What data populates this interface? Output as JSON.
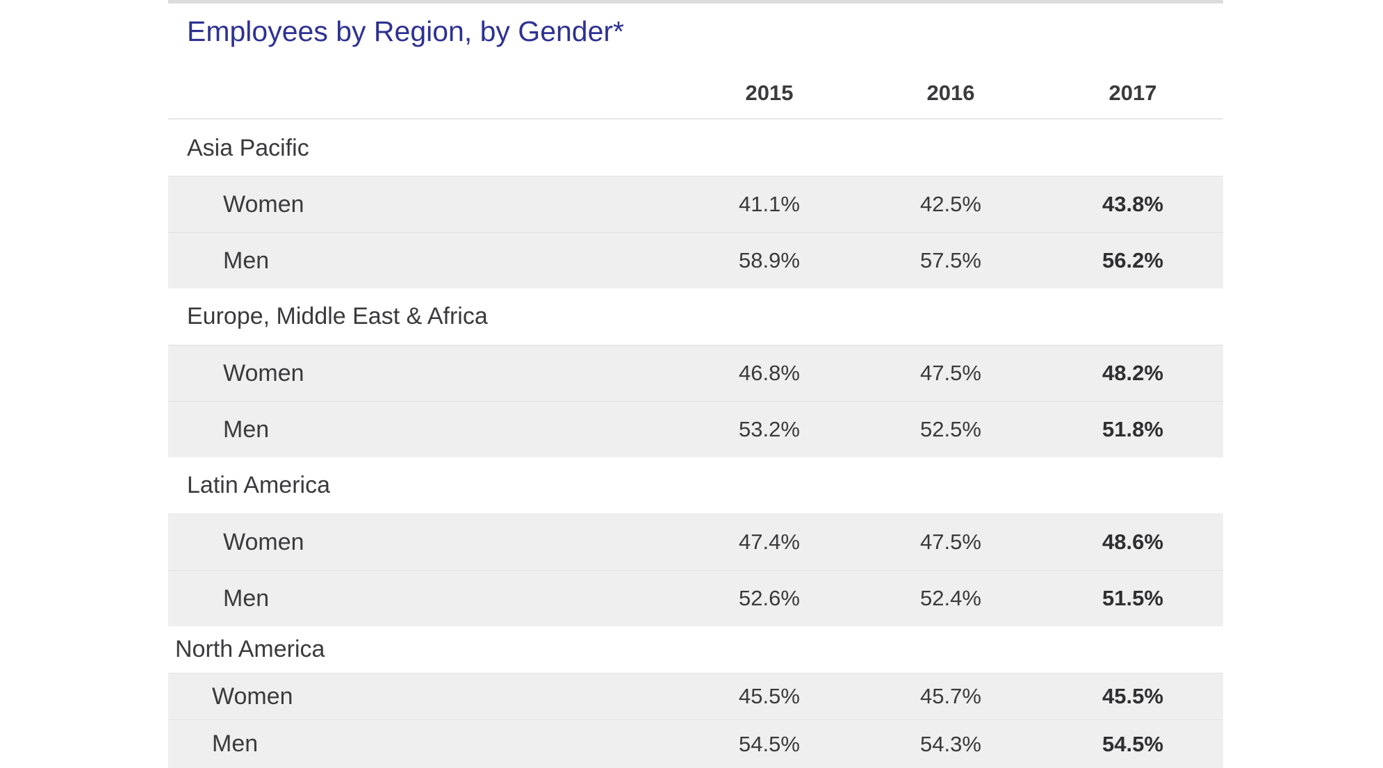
{
  "table": {
    "title": "Employees by Region, by Gender*",
    "years": [
      "2015",
      "2016",
      "2017"
    ],
    "regions": [
      {
        "name": "Asia Pacific",
        "rows": [
          {
            "label": "Women",
            "values": [
              "41.1%",
              "42.5%",
              "43.8%"
            ]
          },
          {
            "label": "Men",
            "values": [
              "58.9%",
              "57.5%",
              "56.2%"
            ]
          }
        ]
      },
      {
        "name": "Europe, Middle East & Africa",
        "rows": [
          {
            "label": "Women",
            "values": [
              "46.8%",
              "47.5%",
              "48.2%"
            ]
          },
          {
            "label": "Men",
            "values": [
              "53.2%",
              "52.5%",
              "51.8%"
            ]
          }
        ]
      },
      {
        "name": "Latin America",
        "rows": [
          {
            "label": "Women",
            "values": [
              "47.4%",
              "47.5%",
              "48.6%"
            ]
          },
          {
            "label": "Men",
            "values": [
              "52.6%",
              "52.4%",
              "51.5%"
            ]
          }
        ]
      },
      {
        "name": "North America",
        "rows": [
          {
            "label": "Women",
            "values": [
              "45.5%",
              "45.7%",
              "45.5%"
            ]
          },
          {
            "label": "Men",
            "values": [
              "54.5%",
              "54.3%",
              "54.5%"
            ]
          }
        ]
      }
    ]
  },
  "colors": {
    "title": "#2e3192",
    "text": "#3a3a3c",
    "row_shade": "#efefef",
    "rule": "#dcdcdc"
  }
}
